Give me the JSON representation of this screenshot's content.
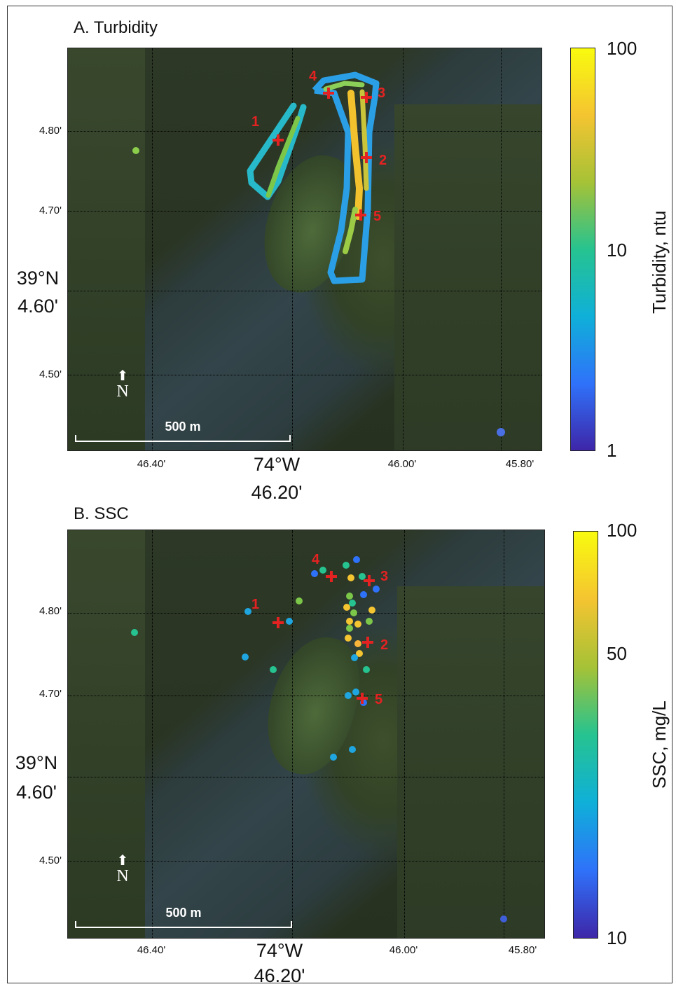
{
  "panel_a": {
    "title": "A. Turbidity",
    "y_ticks": [
      "4.80'",
      "4.70'",
      "4.50'"
    ],
    "y_main": [
      "39°N",
      "4.60'"
    ],
    "x_ticks": [
      "46.40'",
      "46.00'",
      "45.80'"
    ],
    "x_main": [
      "74°W",
      "46.20'"
    ],
    "scale_bar": "500 m",
    "north": "N",
    "colorbar": {
      "label": "Turbidity, ntu",
      "ticks": [
        "100",
        "10",
        "1"
      ],
      "scale": "log"
    },
    "site_labels": [
      "1",
      "2",
      "3",
      "4",
      "5"
    ]
  },
  "panel_b": {
    "title": "B. SSC",
    "y_ticks": [
      "4.80'",
      "4.70'",
      "4.50'"
    ],
    "y_main": [
      "39°N",
      "4.60'"
    ],
    "x_ticks": [
      "46.40'",
      "46.00'",
      "45.80'"
    ],
    "x_main": [
      "74°W",
      "46.20'"
    ],
    "scale_bar": "500 m",
    "north": "N",
    "colorbar": {
      "label": "SSC, mg/L",
      "ticks": [
        "100",
        "50",
        "10"
      ],
      "scale": "log"
    },
    "site_labels": [
      "1",
      "2",
      "3",
      "4",
      "5"
    ]
  },
  "colors": {
    "colormap": [
      "#3e26a8",
      "#2f72fa",
      "#0fb0d8",
      "#26c390",
      "#a6c236",
      "#f4c431",
      "#f9fb0e"
    ],
    "site_marker": "#e52222"
  }
}
